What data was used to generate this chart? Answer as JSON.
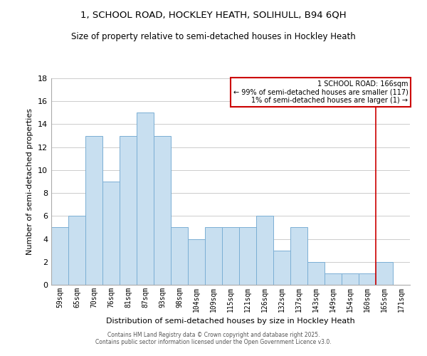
{
  "title1": "1, SCHOOL ROAD, HOCKLEY HEATH, SOLIHULL, B94 6QH",
  "title2": "Size of property relative to semi-detached houses in Hockley Heath",
  "xlabel": "Distribution of semi-detached houses by size in Hockley Heath",
  "ylabel": "Number of semi-detached properties",
  "bin_labels": [
    "59sqm",
    "65sqm",
    "70sqm",
    "76sqm",
    "81sqm",
    "87sqm",
    "93sqm",
    "98sqm",
    "104sqm",
    "109sqm",
    "115sqm",
    "121sqm",
    "126sqm",
    "132sqm",
    "137sqm",
    "143sqm",
    "149sqm",
    "154sqm",
    "160sqm",
    "165sqm",
    "171sqm"
  ],
  "bar_heights": [
    5,
    6,
    13,
    9,
    13,
    15,
    13,
    5,
    4,
    5,
    5,
    5,
    6,
    3,
    5,
    2,
    1,
    1,
    1,
    2,
    0
  ],
  "bar_color": "#c8dff0",
  "bar_edge_color": "#7bafd4",
  "highlight_bar_index": 19,
  "annotation_title": "1 SCHOOL ROAD: 166sqm",
  "annotation_line1": "← 99% of semi-detached houses are smaller (117)",
  "annotation_line2": "1% of semi-detached houses are larger (1) →",
  "annotation_box_color": "#ffffff",
  "annotation_box_edge_color": "#cc0000",
  "ylim": [
    0,
    18
  ],
  "yticks": [
    0,
    2,
    4,
    6,
    8,
    10,
    12,
    14,
    16,
    18
  ],
  "footer1": "Contains HM Land Registry data © Crown copyright and database right 2025.",
  "footer2": "Contains public sector information licensed under the Open Government Licence v3.0.",
  "background_color": "#ffffff",
  "grid_color": "#cccccc"
}
